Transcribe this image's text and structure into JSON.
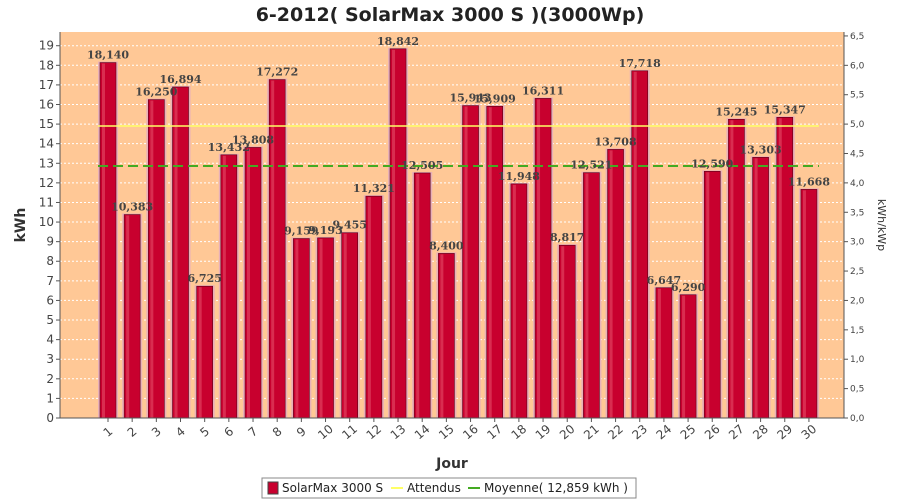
{
  "chart_data": {
    "type": "bar",
    "title": "6-2012( SolarMax 3000 S )(3000Wp)",
    "xlabel": "Jour",
    "ylabel": "kWh",
    "ylabel_right": "kWh/kWp",
    "ylim": [
      0,
      19.7
    ],
    "ylim_right": [
      0,
      6.567
    ],
    "yticks": [
      "0",
      "1",
      "2",
      "3",
      "4",
      "5",
      "6",
      "7",
      "8",
      "9",
      "10",
      "11",
      "12",
      "13",
      "14",
      "15",
      "16",
      "17",
      "18",
      "19"
    ],
    "yticks_right": [
      "0,0",
      "0,5",
      "1,0",
      "1,5",
      "2,0",
      "2,5",
      "3,0",
      "3,5",
      "4,0",
      "4,5",
      "5,0",
      "5,5",
      "6,0",
      "6,5"
    ],
    "categories": [
      "1",
      "2",
      "3",
      "4",
      "5",
      "6",
      "7",
      "8",
      "9",
      "10",
      "11",
      "12",
      "13",
      "14",
      "15",
      "16",
      "17",
      "18",
      "19",
      "20",
      "21",
      "22",
      "23",
      "24",
      "25",
      "26",
      "27",
      "28",
      "29",
      "30"
    ],
    "series": [
      {
        "name": "SolarMax 3000 S",
        "color": "#c8002e",
        "values": [
          18.14,
          10.383,
          16.25,
          16.894,
          6.725,
          13.432,
          13.808,
          17.272,
          9.159,
          9.193,
          9.455,
          11.321,
          18.842,
          12.505,
          8.4,
          15.943,
          15.909,
          11.948,
          16.311,
          8.817,
          12.521,
          13.708,
          17.718,
          6.647,
          6.29,
          12.59,
          15.245,
          13.303,
          15.347,
          11.668
        ],
        "labels": [
          "18,140",
          "10,383",
          "16,250",
          "16,894",
          "6,725",
          "13,432",
          "13,808",
          "17,272",
          "9,159",
          "9,193",
          "9,455",
          "11,321",
          "18,842",
          "12,505",
          "8,400",
          "15,943",
          "15,909",
          "11,948",
          "16,311",
          "8,817",
          "12,521",
          "13,708",
          "17,718",
          "6,647",
          "6,290",
          "12,590",
          "15,245",
          "13,303",
          "15,347",
          "11,668"
        ]
      }
    ],
    "attendus": {
      "name": "Attendus",
      "color": "#ffff66",
      "values": [
        14.9,
        14.9,
        14.9,
        14.9,
        14.9,
        14.9,
        14.9,
        14.9,
        14.9,
        14.9,
        14.9,
        14.9,
        14.9,
        14.9,
        14.9,
        14.9,
        14.9,
        14.9,
        14.9,
        14.9,
        14.9,
        14.9,
        14.9,
        14.9,
        14.9,
        14.9,
        14.9,
        14.9,
        14.9,
        14.9
      ]
    },
    "moyenne": {
      "name": "Moyenne( 12,859 kWh )",
      "color": "#44aa22",
      "value": 12.859
    },
    "grid": true,
    "legend_position": "bottom",
    "colors": {
      "background": "#ffc896",
      "bar": "#c8002e"
    }
  }
}
